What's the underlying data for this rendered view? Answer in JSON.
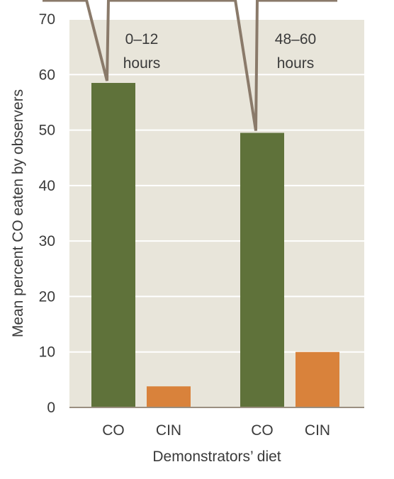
{
  "chart_data": {
    "type": "bar",
    "groups": [
      {
        "label": "0–12 hours",
        "label_lines": [
          "0–12",
          "hours"
        ],
        "categories": [
          "CO",
          "CIN"
        ],
        "values": [
          58.5,
          3.8
        ]
      },
      {
        "label": "48–60 hours",
        "label_lines": [
          "48–60",
          "hours"
        ],
        "categories": [
          "CO",
          "CIN"
        ],
        "values": [
          49.5,
          10
        ]
      }
    ],
    "xlabel": "Demonstrators’ diet",
    "ylabel": "Mean percent CO eaten by observers",
    "ylim": [
      0,
      70
    ],
    "yticks": [
      0,
      10,
      20,
      30,
      40,
      50,
      60,
      70
    ],
    "grid": true,
    "colors": {
      "CO": "#5f723a",
      "CIN": "#d9823b",
      "background": "#e8e5da",
      "grid": "#ffffff",
      "callout": "#8a7a6a"
    }
  }
}
